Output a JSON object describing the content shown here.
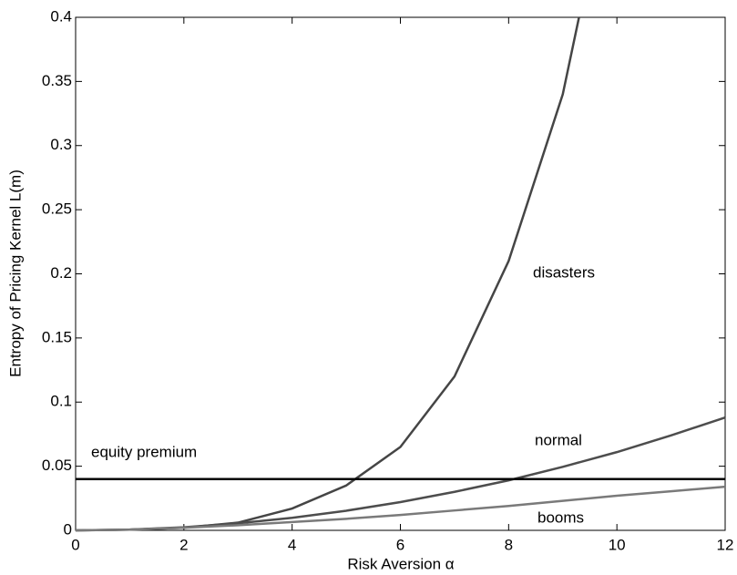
{
  "chart_data": {
    "type": "line",
    "xlabel": "Risk Aversion α",
    "ylabel": "Entropy of Pricing Kernel L(m)",
    "xlim": [
      0,
      12
    ],
    "ylim": [
      0,
      0.4
    ],
    "xticks": [
      0,
      2,
      4,
      6,
      8,
      10,
      12
    ],
    "yticks": [
      0,
      0.05,
      0.1,
      0.15,
      0.2,
      0.25,
      0.3,
      0.35,
      0.4
    ],
    "series": [
      {
        "name": "disasters",
        "color": "#454545",
        "x": [
          0,
          1,
          2,
          3,
          4,
          5,
          6,
          7,
          8,
          9,
          9.3
        ],
        "values": [
          0,
          0.0005,
          0.002,
          0.006,
          0.017,
          0.035,
          0.065,
          0.12,
          0.21,
          0.34,
          0.4
        ]
      },
      {
        "name": "normal",
        "color": "#4d4d4d",
        "x": [
          0,
          1,
          2,
          3,
          4,
          5,
          6,
          7,
          8,
          9,
          10,
          11,
          12
        ],
        "values": [
          0,
          0.0006,
          0.0024,
          0.0055,
          0.0098,
          0.0153,
          0.022,
          0.03,
          0.039,
          0.0495,
          0.061,
          0.074,
          0.088
        ]
      },
      {
        "name": "booms",
        "color": "#7a7a7a",
        "x": [
          0,
          1,
          2,
          3,
          4,
          5,
          6,
          7,
          8,
          9,
          10,
          11,
          12
        ],
        "values": [
          0,
          0.0005,
          0.002,
          0.004,
          0.0065,
          0.009,
          0.012,
          0.0155,
          0.019,
          0.023,
          0.027,
          0.0305,
          0.034
        ]
      },
      {
        "name": "equity premium",
        "color": "#000000",
        "x": [
          0,
          12
        ],
        "values": [
          0.04,
          0.04
        ]
      }
    ]
  }
}
